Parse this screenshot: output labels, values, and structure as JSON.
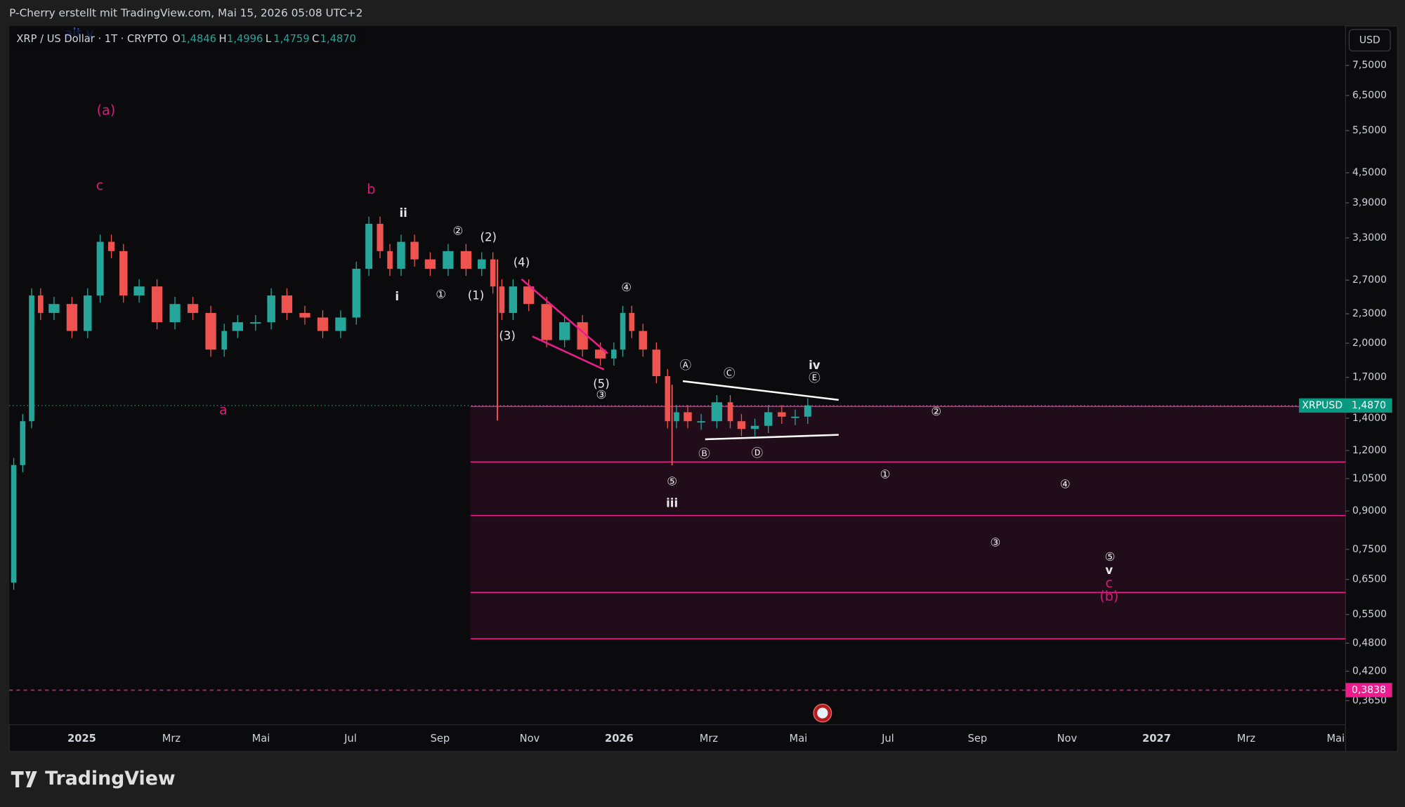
{
  "header": {
    "author_line": "P-Cherry erstellt mit TradingView.com, Mai 15, 2026 05:08 UTC+2"
  },
  "symbol": {
    "name": "XRP / US Dollar · 1T · CRYPTO",
    "ohlc": [
      {
        "key": "O",
        "value": "1,4846"
      },
      {
        "key": "H",
        "value": "1,4996"
      },
      {
        "key": "L",
        "value": "1,4759"
      },
      {
        "key": "C",
        "value": "1,4870"
      }
    ]
  },
  "currency": "USD",
  "price_axis": {
    "scale": "log",
    "ylim": [
      0.3256,
      9.05
    ],
    "yticks": [
      {
        "value": 7.5,
        "label": "7,5000"
      },
      {
        "value": 6.5,
        "label": "6,5000"
      },
      {
        "value": 5.5,
        "label": "5,5000"
      },
      {
        "value": 4.5,
        "label": "4,5000"
      },
      {
        "value": 3.9,
        "label": "3,9000"
      },
      {
        "value": 3.3,
        "label": "3,3000"
      },
      {
        "value": 2.7,
        "label": "2,7000"
      },
      {
        "value": 2.3,
        "label": "2,3000"
      },
      {
        "value": 2,
        "label": "2,0000"
      },
      {
        "value": 1.7,
        "label": "1,7000"
      },
      {
        "value": 1.4,
        "label": "1,4000"
      },
      {
        "value": 1.2,
        "label": "1,2000"
      },
      {
        "value": 1.05,
        "label": "1,0500"
      },
      {
        "value": 0.9,
        "label": "0,9000"
      },
      {
        "value": 0.75,
        "label": "0,7500"
      },
      {
        "value": 0.65,
        "label": "0,6500"
      },
      {
        "value": 0.55,
        "label": "0,5500"
      },
      {
        "value": 0.48,
        "label": "0,4800"
      },
      {
        "value": 0.42,
        "label": "0,4200"
      },
      {
        "value": 0.365,
        "label": "0,3650"
      }
    ]
  },
  "time_axis": {
    "xlim": [
      -1.62,
      28.22
    ],
    "xticks": [
      {
        "value": 0,
        "label": "2025"
      },
      {
        "value": 2,
        "label": "Mrz"
      },
      {
        "value": 4,
        "label": "Mai"
      },
      {
        "value": 6,
        "label": "Jul"
      },
      {
        "value": 8,
        "label": "Sep"
      },
      {
        "value": 10,
        "label": "Nov"
      },
      {
        "value": 12,
        "label": "2026"
      },
      {
        "value": 14,
        "label": "Mrz"
      },
      {
        "value": 16,
        "label": "Mai"
      },
      {
        "value": 18,
        "label": "Jul"
      },
      {
        "value": 20,
        "label": "Sep"
      },
      {
        "value": 22,
        "label": "Nov"
      },
      {
        "value": 24,
        "label": "2027"
      },
      {
        "value": 26,
        "label": "Mrz"
      },
      {
        "value": 28,
        "label": "Mai"
      }
    ]
  },
  "price_path": {
    "x": [
      -1.62,
      -1.42,
      -1.22,
      -1.02,
      -0.82,
      -0.42,
      -0.02,
      0.28,
      0.54,
      0.78,
      1.08,
      1.48,
      1.88,
      2.28,
      2.68,
      3.08,
      3.28,
      3.68,
      4.08,
      4.38,
      4.78,
      5.18,
      5.58,
      5.98,
      6.28,
      6.54,
      6.78,
      6.98,
      7.28,
      7.58,
      7.98,
      8.38,
      8.78,
      9.08,
      9.28,
      9.48,
      9.78,
      10.18,
      10.58,
      10.98,
      11.38,
      11.78,
      11.98,
      12.18,
      12.38,
      12.68,
      12.98,
      13.18,
      13.38,
      13.68,
      13.98,
      14.38,
      14.58,
      14.88,
      15.18,
      15.48,
      15.78,
      16.08,
      16.34
    ],
    "values": [
      0.64,
      1.12,
      1.38,
      2.51,
      2.31,
      2.41,
      2.12,
      2.51,
      3.24,
      3.1,
      2.51,
      2.62,
      2.21,
      2.41,
      2.31,
      1.94,
      2.12,
      2.21,
      2.21,
      2.51,
      2.31,
      2.26,
      2.12,
      2.26,
      2.85,
      3.53,
      3.1,
      2.85,
      3.24,
      2.98,
      2.85,
      3.1,
      2.85,
      2.98,
      2.62,
      2.31,
      2.62,
      2.41,
      2.03,
      2.21,
      1.94,
      1.86,
      1.94,
      2.31,
      2.12,
      1.94,
      1.71,
      1.38,
      1.44,
      1.38,
      1.38,
      1.51,
      1.38,
      1.33,
      1.35,
      1.44,
      1.41,
      1.41,
      1.487
    ]
  },
  "last_price": {
    "symbol": "XRPUSD",
    "value": 1.487,
    "label": "1,4870"
  },
  "alert": {
    "value": 0.3838,
    "label": "0,3838"
  },
  "zone": {
    "start": 8.68,
    "levels": [
      1.48,
      1.137,
      0.881,
      0.611,
      0.49
    ]
  },
  "wave_labels": [
    "alt y",
    "(a)",
    "c",
    "a",
    "b",
    "ii",
    "i",
    "①",
    "②",
    "(2)",
    "(1)",
    "(4)",
    "(3)",
    "④",
    "(5)",
    "③",
    "Ⓐ",
    "Ⓒ",
    "iv",
    "Ⓔ",
    "Ⓑ",
    "Ⓓ",
    "⑤",
    "iii",
    "②",
    "①",
    "④",
    "③",
    "⑤",
    "v",
    "c",
    "(b)"
  ],
  "logo": "TradingView"
}
